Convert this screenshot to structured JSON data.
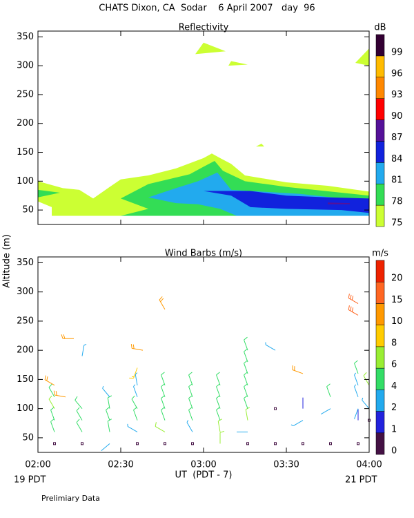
{
  "header": {
    "title": "CHATS Dixon, CA  Sodar    6 April 2007   day  96"
  },
  "ylabel": "Altitude (m)",
  "xlabel": "UT  (PDT - 7)",
  "left_note": "19 PDT",
  "right_note": "21 PDT",
  "footnote": "Prelimiary Data",
  "chart_data": [
    {
      "type": "contour",
      "title": "Reflectivity",
      "xlim": [
        120,
        240
      ],
      "xticks": [
        120,
        150,
        180,
        210,
        240
      ],
      "ylim": [
        25,
        360
      ],
      "yticks": [
        50,
        100,
        150,
        200,
        250,
        300,
        350
      ],
      "colorbar": {
        "label": "dB",
        "levels": [
          75,
          78,
          81,
          84,
          87,
          90,
          93,
          96,
          99
        ],
        "colors": [
          "#ccff33",
          "#33dd55",
          "#22aaee",
          "#1122dd",
          "#551199",
          "#ff0000",
          "#ff8800",
          "#ffbb00",
          "#330033"
        ]
      },
      "regions": [
        {
          "level": 75,
          "points": [
            [
              120,
              100
            ],
            [
              129,
              88
            ],
            [
              135,
              85
            ],
            [
              140,
              70
            ],
            [
              146,
              90
            ],
            [
              150,
              103
            ],
            [
              160,
              110
            ],
            [
              170,
              122
            ],
            [
              180,
              140
            ],
            [
              183,
              148
            ],
            [
              186,
              140
            ],
            [
              190,
              130
            ],
            [
              195,
              110
            ],
            [
              210,
              98
            ],
            [
              225,
              92
            ],
            [
              240,
              82
            ],
            [
              240,
              40
            ],
            [
              125,
              40
            ],
            [
              125,
              55
            ],
            [
              120,
              65
            ]
          ]
        },
        {
          "level": 75,
          "points": [
            [
              177,
              320
            ],
            [
              180,
              340
            ],
            [
              188,
              325
            ]
          ]
        },
        {
          "level": 75,
          "points": [
            [
              189,
              300
            ],
            [
              190,
              308
            ],
            [
              196,
              302
            ]
          ]
        },
        {
          "level": 75,
          "points": [
            [
              199,
              160
            ],
            [
              201,
              165
            ],
            [
              202,
              160
            ]
          ]
        },
        {
          "level": 75,
          "points": [
            [
              235,
              305
            ],
            [
              240,
              330
            ],
            [
              240,
              300
            ]
          ]
        },
        {
          "level": 78,
          "points": [
            [
              120,
              85
            ],
            [
              128,
              80
            ],
            [
              120,
              72
            ]
          ]
        },
        {
          "level": 78,
          "points": [
            [
              150,
              70
            ],
            [
              160,
              95
            ],
            [
              175,
              112
            ],
            [
              180,
              125
            ],
            [
              184,
              135
            ],
            [
              187,
              118
            ],
            [
              195,
              100
            ],
            [
              210,
              90
            ],
            [
              240,
              75
            ],
            [
              240,
              40
            ],
            [
              150,
              40
            ],
            [
              160,
              52
            ]
          ]
        },
        {
          "level": 81,
          "points": [
            [
              160,
              72
            ],
            [
              170,
              88
            ],
            [
              178,
              100
            ],
            [
              185,
              115
            ],
            [
              190,
              85
            ],
            [
              215,
              78
            ],
            [
              240,
              65
            ],
            [
              240,
              40
            ],
            [
              192,
              40
            ],
            [
              186,
              52
            ],
            [
              178,
              60
            ],
            [
              170,
              62
            ]
          ]
        },
        {
          "level": 84,
          "points": [
            [
              180,
              83
            ],
            [
              197,
              83
            ],
            [
              210,
              75
            ],
            [
              225,
              72
            ],
            [
              240,
              70
            ],
            [
              240,
              45
            ],
            [
              230,
              50
            ],
            [
              210,
              52
            ],
            [
              197,
              55
            ],
            [
              190,
              75
            ]
          ]
        },
        {
          "level": 87,
          "points": [
            [
              225,
              63
            ],
            [
              233,
              62
            ],
            [
              233,
              60
            ],
            [
              225,
              60
            ]
          ]
        }
      ]
    },
    {
      "type": "barbs",
      "title": "Wind Barbs (m/s)",
      "xlim": [
        120,
        240
      ],
      "xticks": [
        {
          "value": 120,
          "label": "02:00"
        },
        {
          "value": 150,
          "label": "02:30"
        },
        {
          "value": 180,
          "label": "03:00"
        },
        {
          "value": 210,
          "label": "03:30"
        },
        {
          "value": 240,
          "label": "04:00"
        }
      ],
      "ylim": [
        25,
        360
      ],
      "yticks": [
        50,
        100,
        150,
        200,
        250,
        300,
        350
      ],
      "colorbar": {
        "label": "m/s",
        "levels": [
          0,
          1,
          2,
          4,
          6,
          8,
          10,
          15,
          20
        ],
        "colors": [
          "#441144",
          "#2222dd",
          "#22aaee",
          "#33dd66",
          "#99ee33",
          "#ffcc00",
          "#ff9900",
          "#ff6622",
          "#ee2200"
        ]
      },
      "x": [
        126,
        126,
        126,
        126,
        126,
        126,
        130,
        133,
        136,
        136,
        136,
        136,
        136,
        146,
        146,
        146,
        146,
        146,
        156,
        156,
        156,
        156,
        156,
        156,
        156,
        158,
        166,
        166,
        166,
        166,
        166,
        166,
        166,
        176,
        176,
        176,
        176,
        176,
        176,
        186,
        186,
        186,
        186,
        186,
        186,
        196,
        196,
        196,
        196,
        196,
        196,
        196,
        196,
        196,
        206,
        206,
        206,
        216,
        216,
        216,
        216,
        226,
        226,
        226,
        236,
        236,
        236,
        236,
        236,
        236,
        236,
        236,
        240,
        240,
        240
      ],
      "y": [
        40,
        60,
        80,
        100,
        120,
        140,
        120,
        220,
        190,
        40,
        60,
        80,
        100,
        40,
        60,
        80,
        100,
        120,
        40,
        60,
        80,
        100,
        120,
        140,
        170,
        200,
        40,
        60,
        80,
        100,
        120,
        140,
        270,
        40,
        60,
        80,
        100,
        120,
        140,
        40,
        60,
        80,
        100,
        120,
        140,
        40,
        60,
        80,
        100,
        120,
        140,
        160,
        180,
        200,
        40,
        100,
        200,
        40,
        100,
        80,
        160,
        40,
        100,
        120,
        40,
        80,
        100,
        120,
        140,
        160,
        280,
        260,
        140,
        100,
        80
      ],
      "speed": [
        0.5,
        5,
        5,
        7,
        5,
        12,
        12,
        12,
        3,
        0.5,
        5,
        5,
        5,
        2,
        5,
        5,
        5,
        3,
        0.5,
        3,
        5,
        5,
        3,
        3,
        9,
        12,
        0.5,
        6,
        5,
        5,
        5,
        5,
        11,
        0.5,
        3,
        5,
        5,
        5,
        5,
        7,
        7,
        5,
        5,
        5,
        5,
        0.5,
        2,
        7,
        5,
        5,
        5,
        5,
        5,
        5,
        0.5,
        0.5,
        3,
        0.5,
        1,
        3,
        12,
        0.5,
        2,
        5,
        0.5,
        1,
        2,
        3,
        3,
        5,
        17,
        17,
        7,
        3,
        0.5
      ],
      "direction": [
        0,
        340,
        340,
        330,
        330,
        300,
        280,
        270,
        10,
        0,
        330,
        330,
        320,
        230,
        350,
        340,
        350,
        320,
        0,
        300,
        340,
        330,
        340,
        350,
        200,
        280,
        0,
        300,
        340,
        340,
        340,
        340,
        330,
        0,
        330,
        340,
        340,
        340,
        340,
        360,
        350,
        340,
        340,
        340,
        340,
        0,
        270,
        350,
        340,
        340,
        340,
        340,
        340,
        340,
        0,
        0,
        300,
        0,
        0,
        240,
        290,
        0,
        240,
        340,
        0,
        0,
        200,
        340,
        340,
        340,
        300,
        300,
        330,
        320,
        0
      ]
    }
  ]
}
